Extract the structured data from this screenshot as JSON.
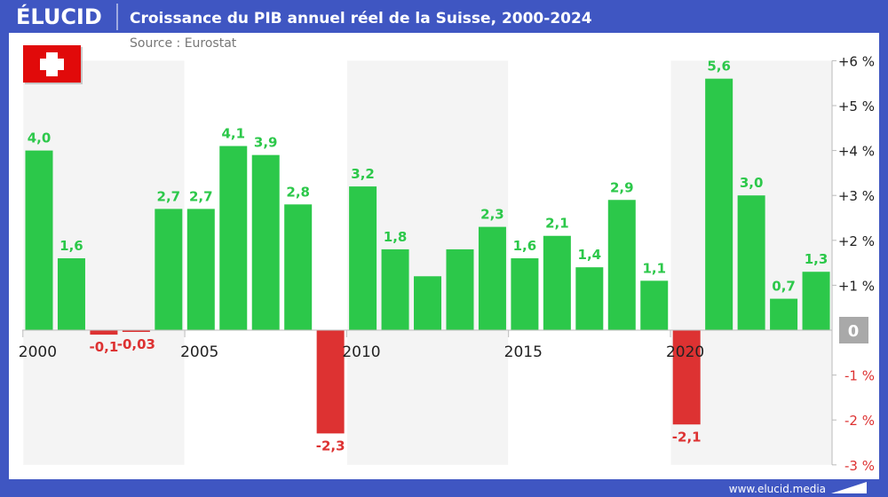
{
  "brand": {
    "logo": "ÉLUCID",
    "footer_url": "www.elucid.media"
  },
  "header": {
    "title": "Croissance du PIB annuel réel de la Suisse, 2000-2024",
    "source": "Source : Eurostat"
  },
  "flag": {
    "country": "Suisse",
    "icon": "swiss-flag-icon"
  },
  "colors": {
    "header": "#3f56c2",
    "positive": "#2cc84a",
    "negative": "#dd3232",
    "band": "#f4f4f4"
  },
  "chart_data": {
    "type": "bar",
    "title": "Croissance du PIB annuel réel de la Suisse, 2000-2024",
    "categories": [
      "2000",
      "2001",
      "2002",
      "2003",
      "2004",
      "2005",
      "2006",
      "2007",
      "2008",
      "2009",
      "2010",
      "2011",
      "2012",
      "2013",
      "2014",
      "2015",
      "2016",
      "2017",
      "2018",
      "2019",
      "2020",
      "2021",
      "2022",
      "2023",
      "2024"
    ],
    "values": [
      4.0,
      1.6,
      -0.1,
      -0.03,
      2.7,
      2.7,
      4.1,
      3.9,
      2.8,
      -2.3,
      3.2,
      1.8,
      1.2,
      1.8,
      2.3,
      1.6,
      2.1,
      1.4,
      2.9,
      1.1,
      -2.1,
      5.6,
      3.0,
      0.7,
      1.3
    ],
    "data_labels": [
      "4,0",
      "1,6",
      "-0,1",
      "-0,03",
      "2,7",
      "2,7",
      "4,1",
      "3,9",
      "2,8",
      "-2,3",
      "3,2",
      "1,8",
      "",
      "",
      "2,3",
      "1,6",
      "2,1",
      "1,4",
      "2,9",
      "1,1",
      "-2,1",
      "5,6",
      "3,0",
      "0,7",
      "1,3"
    ],
    "x_tick_labels": [
      "2000",
      "2005",
      "2010",
      "2015",
      "2020"
    ],
    "y_ticks": [
      6,
      5,
      4,
      3,
      2,
      1,
      0,
      -1,
      -2,
      -3
    ],
    "y_tick_labels": [
      "+6 %",
      "+5 %",
      "+4 %",
      "+3 %",
      "+2 %",
      "+1 %",
      "0",
      "-1 %",
      "-2 %",
      "-3 %"
    ],
    "ylim": [
      -3,
      6
    ],
    "y_axis_position": "right",
    "grid": false
  }
}
